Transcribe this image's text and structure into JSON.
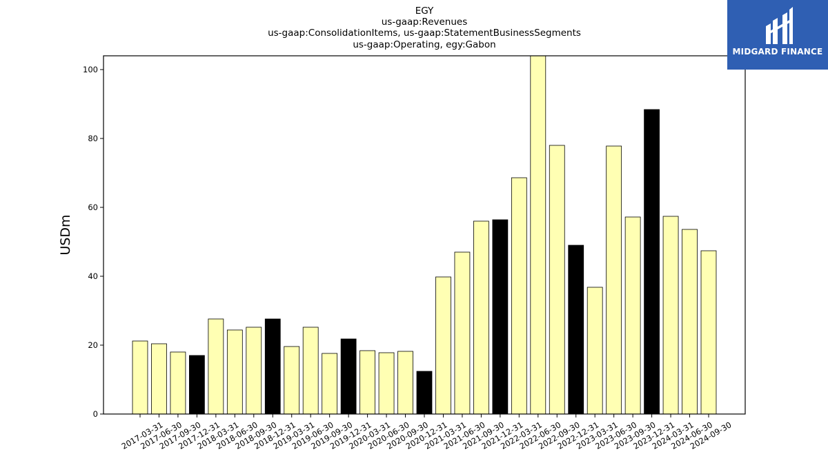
{
  "chart_data": {
    "type": "bar",
    "title_lines": [
      "EGY",
      "us-gaap:Revenues",
      "us-gaap:ConsolidationItems, us-gaap:StatementBusinessSegments",
      "us-gaap:Operating, egy:Gabon"
    ],
    "xlabel": "",
    "ylabel": "USDm",
    "ylim": [
      0,
      104
    ],
    "yticks": [
      0,
      20,
      40,
      60,
      80,
      100
    ],
    "grid": false,
    "categories": [
      "2017-03-31",
      "2017-06-30",
      "2017-09-30",
      "2017-12-31",
      "2018-03-31",
      "2018-06-30",
      "2018-09-30",
      "2018-12-31",
      "2019-03-31",
      "2019-06-30",
      "2019-09-30",
      "2019-12-31",
      "2020-03-31",
      "2020-06-30",
      "2020-09-30",
      "2020-12-31",
      "2021-03-31",
      "2021-06-30",
      "2021-09-30",
      "2021-12-31",
      "2022-03-31",
      "2022-06-30",
      "2022-09-30",
      "2022-12-31",
      "2023-03-31",
      "2023-06-30",
      "2023-09-30",
      "2023-12-31",
      "2024-03-31",
      "2024-06-30",
      "2024-09-30"
    ],
    "values": [
      21.2,
      20.4,
      18.0,
      17.0,
      27.6,
      24.4,
      25.2,
      27.6,
      19.6,
      25.2,
      17.6,
      21.8,
      18.4,
      17.8,
      18.2,
      12.4,
      39.8,
      47.0,
      56.0,
      56.4,
      68.6,
      104.0,
      78.0,
      49.0,
      36.8,
      77.8,
      57.2,
      88.4,
      57.4,
      53.6,
      47.4
    ],
    "bar_colors": {
      "regular": "#ffffb3",
      "year_end": "#000000",
      "edge": "#000000"
    }
  },
  "logo": {
    "text": "MIDGARD FINANCE",
    "background": "#2f5fb3"
  }
}
